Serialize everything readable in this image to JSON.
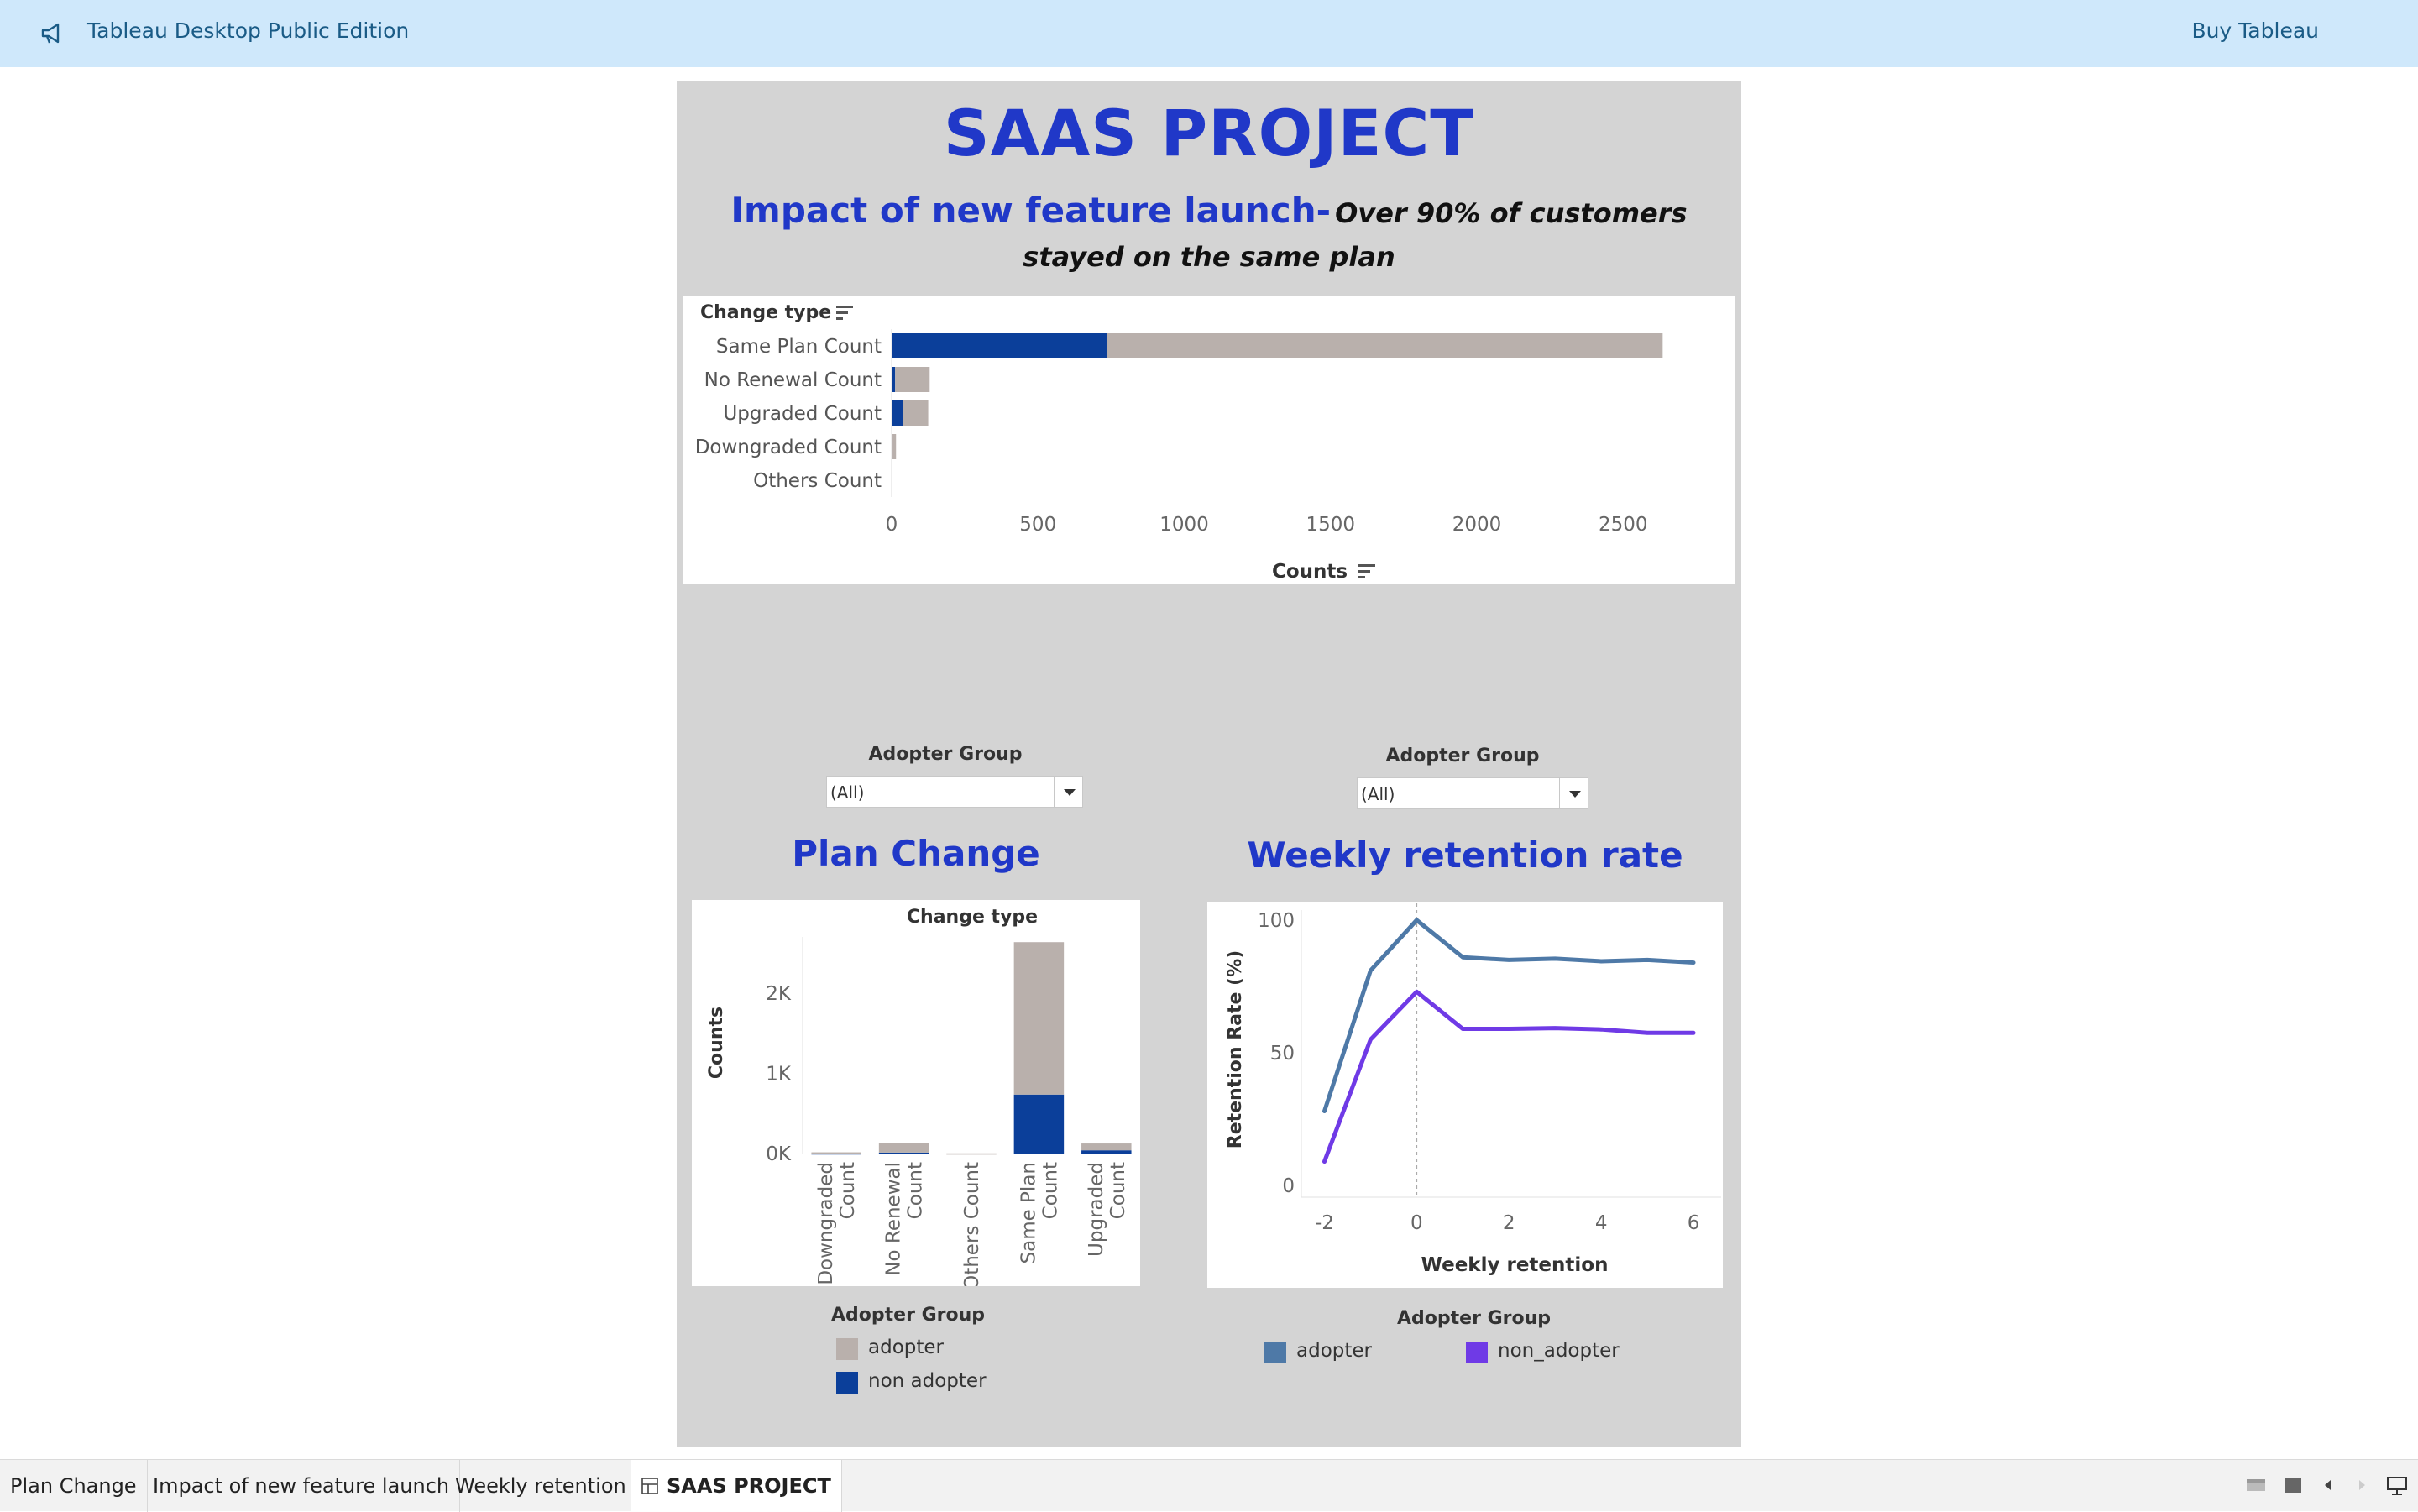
{
  "topbar": {
    "icon": "megaphone-icon",
    "app_title": "Tableau Desktop Public Edition",
    "buy_label": "Buy Tableau"
  },
  "dashboard": {
    "title": "SAAS PROJECT",
    "subtitle_bold": "Impact of new feature launch-",
    "subtitle_italic": "Over 90% of customers stayed on the same plan",
    "filters": [
      {
        "label": "Adopter Group",
        "value": "(All)"
      },
      {
        "label": "Adopter Group",
        "value": "(All)"
      }
    ],
    "plan_change_title": "Plan Change",
    "weekly_title": "Weekly retention rate",
    "plan_legend": {
      "title": "Adopter Group",
      "items": [
        {
          "label": "adopter",
          "color": "#b9b0ac"
        },
        {
          "label": "non adopter",
          "color": "#0b3f9a"
        }
      ]
    },
    "weekly_legend": {
      "title": "Adopter Group",
      "items": [
        {
          "label": "adopter",
          "color": "#4e79a7"
        },
        {
          "label": "non_adopter",
          "color": "#6f3ae6"
        }
      ]
    }
  },
  "chart_data": [
    {
      "type": "bar",
      "orientation": "horizontal",
      "stacked": true,
      "header_label": "Change type",
      "categories": [
        "Same Plan Count",
        "No Renewal Count",
        "Upgraded Count",
        "Downgraded Count",
        "Others Count"
      ],
      "series": [
        {
          "name": "non adopter",
          "color": "#0b3f9a",
          "values": [
            735,
            12,
            40,
            3,
            0
          ]
        },
        {
          "name": "adopter",
          "color": "#b9b0ac",
          "values": [
            1900,
            118,
            85,
            12,
            2
          ]
        }
      ],
      "xlabel": "Counts",
      "xticks": [
        "0",
        "500",
        "1000",
        "1500",
        "2000",
        "2500"
      ],
      "xlim": [
        0,
        2700
      ]
    },
    {
      "type": "bar",
      "orientation": "vertical",
      "stacked": true,
      "header_label": "Change type",
      "categories": [
        "Downgraded Count",
        "No Renewal Count",
        "Others Count",
        "Same Plan Count",
        "Upgraded Count"
      ],
      "series": [
        {
          "name": "non adopter",
          "color": "#0b3f9a",
          "values": [
            3,
            12,
            0,
            735,
            40
          ]
        },
        {
          "name": "adopter",
          "color": "#b9b0ac",
          "values": [
            12,
            118,
            2,
            1900,
            85
          ]
        }
      ],
      "ylabel": "Counts",
      "yticks": [
        "0K",
        "1K",
        "2K"
      ],
      "ylim": [
        0,
        2700
      ]
    },
    {
      "type": "line",
      "x": [
        -2,
        -1,
        0,
        1,
        2,
        3,
        4,
        5,
        6
      ],
      "series": [
        {
          "name": "adopter",
          "color": "#4e79a7",
          "values": [
            28,
            81,
            100,
            86,
            85,
            85.5,
            84.5,
            85,
            84
          ]
        },
        {
          "name": "non_adopter",
          "color": "#6f3ae6",
          "values": [
            9,
            55,
            73,
            59,
            59,
            59.3,
            58.8,
            57.5,
            57.5
          ]
        }
      ],
      "xlabel": "Weekly retention",
      "ylabel": "Retention Rate (%)",
      "xticks": [
        "-2",
        "0",
        "2",
        "4",
        "6"
      ],
      "yticks": [
        "0",
        "50",
        "100"
      ],
      "xlim": [
        -2.5,
        6.6
      ],
      "ylim": [
        0,
        100
      ],
      "reference_line_x": 0
    }
  ],
  "tabs": [
    {
      "label": "Plan Change",
      "active": false
    },
    {
      "label": "Impact of new feature launch",
      "active": false
    },
    {
      "label": "Weekly retention",
      "active": false
    },
    {
      "label": "SAAS PROJECT",
      "active": true
    }
  ],
  "bottom_controls": [
    "layout-icon",
    "sheet-icon",
    "prev-icon",
    "next-icon",
    "presentation-icon"
  ]
}
